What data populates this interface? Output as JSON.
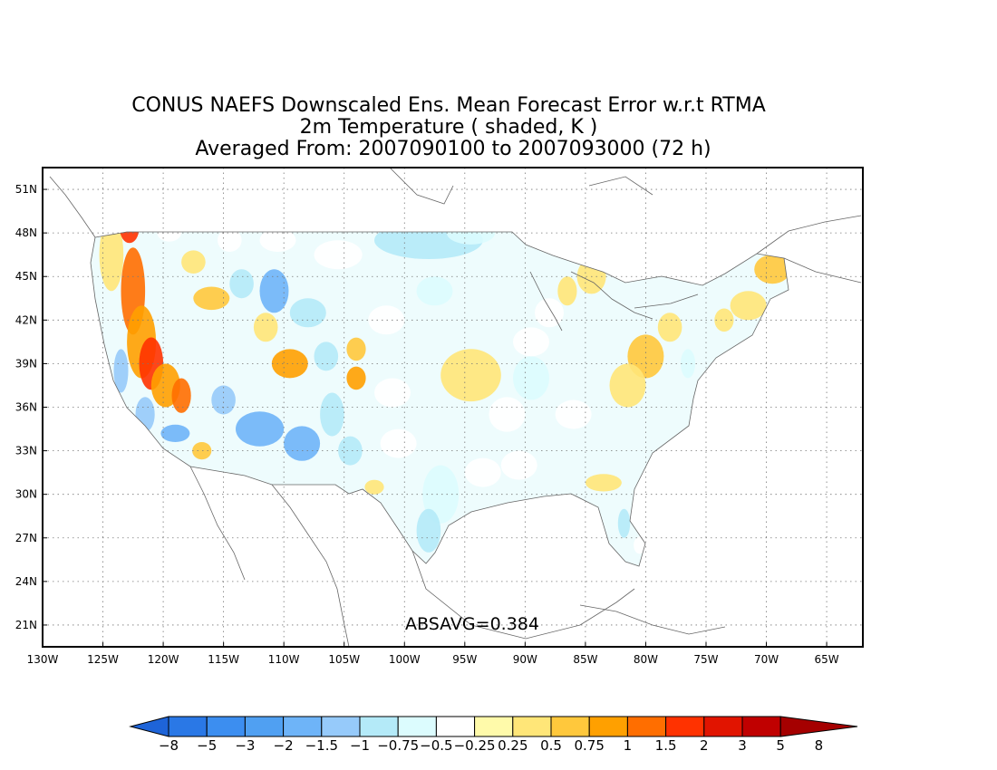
{
  "title": {
    "line1": "CONUS NAEFS Downscaled Ens. Mean Forecast Error w.r.t RTMA",
    "line2": "2m Temperature ( shaded, K )",
    "line3": "Averaged From: 2007090100 to 2007093000 (72 h)"
  },
  "stat_label": "ABSAVG=0.384",
  "map": {
    "lon_range": [
      -130,
      -62
    ],
    "lat_range": [
      19.5,
      52.5
    ],
    "lon_ticks": [
      {
        "value": -130,
        "label": "130W"
      },
      {
        "value": -125,
        "label": "125W"
      },
      {
        "value": -120,
        "label": "120W"
      },
      {
        "value": -115,
        "label": "115W"
      },
      {
        "value": -110,
        "label": "110W"
      },
      {
        "value": -105,
        "label": "105W"
      },
      {
        "value": -100,
        "label": "100W"
      },
      {
        "value": -95,
        "label": "95W"
      },
      {
        "value": -90,
        "label": "90W"
      },
      {
        "value": -85,
        "label": "85W"
      },
      {
        "value": -80,
        "label": "80W"
      },
      {
        "value": -75,
        "label": "75W"
      },
      {
        "value": -70,
        "label": "70W"
      },
      {
        "value": -65,
        "label": "65W"
      }
    ],
    "lat_ticks": [
      {
        "value": 21,
        "label": "21N"
      },
      {
        "value": 24,
        "label": "24N"
      },
      {
        "value": 27,
        "label": "27N"
      },
      {
        "value": 30,
        "label": "30N"
      },
      {
        "value": 33,
        "label": "33N"
      },
      {
        "value": 36,
        "label": "36N"
      },
      {
        "value": 39,
        "label": "39N"
      },
      {
        "value": 42,
        "label": "42N"
      },
      {
        "value": 45,
        "label": "45N"
      },
      {
        "value": 48,
        "label": "48N"
      },
      {
        "value": 51,
        "label": "51N"
      }
    ],
    "grid": true,
    "patches": [
      {
        "lon": -124.3,
        "lat": 46.5,
        "rx": 1.0,
        "ry": 2.5,
        "value": 0.5
      },
      {
        "lon": -122.8,
        "lat": 48.3,
        "rx": 0.8,
        "ry": 1.0,
        "value": 2
      },
      {
        "lon": -122.5,
        "lat": 44.0,
        "rx": 1.0,
        "ry": 3.0,
        "value": 1.5
      },
      {
        "lon": -121.8,
        "lat": 40.5,
        "rx": 1.2,
        "ry": 2.5,
        "value": 1
      },
      {
        "lon": -121.0,
        "lat": 39.0,
        "rx": 1.0,
        "ry": 1.8,
        "value": 2
      },
      {
        "lon": -119.8,
        "lat": 37.5,
        "rx": 1.2,
        "ry": 1.5,
        "value": 1
      },
      {
        "lon": -118.5,
        "lat": 36.8,
        "rx": 0.8,
        "ry": 1.2,
        "value": 1.5
      },
      {
        "lon": -123.5,
        "lat": 38.5,
        "rx": 0.6,
        "ry": 1.5,
        "value": -1
      },
      {
        "lon": -121.5,
        "lat": 35.5,
        "rx": 0.8,
        "ry": 1.2,
        "value": -1
      },
      {
        "lon": -119.0,
        "lat": 34.2,
        "rx": 1.2,
        "ry": 0.6,
        "value": -1.5
      },
      {
        "lon": -116.8,
        "lat": 33.0,
        "rx": 0.8,
        "ry": 0.6,
        "value": 0.75
      },
      {
        "lon": -117.5,
        "lat": 46.0,
        "rx": 1.0,
        "ry": 0.8,
        "value": 0.5
      },
      {
        "lon": -116.0,
        "lat": 43.5,
        "rx": 1.5,
        "ry": 0.8,
        "value": 0.75
      },
      {
        "lon": -113.5,
        "lat": 44.5,
        "rx": 1.0,
        "ry": 1.0,
        "value": -0.75
      },
      {
        "lon": -110.8,
        "lat": 44.0,
        "rx": 1.2,
        "ry": 1.5,
        "value": -1.5
      },
      {
        "lon": -108.0,
        "lat": 42.5,
        "rx": 1.5,
        "ry": 1.0,
        "value": -0.75
      },
      {
        "lon": -111.5,
        "lat": 41.5,
        "rx": 1.0,
        "ry": 1.0,
        "value": 0.5
      },
      {
        "lon": -109.5,
        "lat": 39.0,
        "rx": 1.5,
        "ry": 1.0,
        "value": 1
      },
      {
        "lon": -106.5,
        "lat": 39.5,
        "rx": 1.0,
        "ry": 1.0,
        "value": -0.75
      },
      {
        "lon": -104.0,
        "lat": 40.0,
        "rx": 0.8,
        "ry": 0.8,
        "value": 0.75
      },
      {
        "lon": -104.0,
        "lat": 38.0,
        "rx": 0.8,
        "ry": 0.8,
        "value": 1
      },
      {
        "lon": -112.0,
        "lat": 34.5,
        "rx": 2.0,
        "ry": 1.2,
        "value": -1.5
      },
      {
        "lon": -108.5,
        "lat": 33.5,
        "rx": 1.5,
        "ry": 1.2,
        "value": -1.5
      },
      {
        "lon": -106.0,
        "lat": 35.5,
        "rx": 1.0,
        "ry": 1.5,
        "value": -0.75
      },
      {
        "lon": -104.5,
        "lat": 33.0,
        "rx": 1.0,
        "ry": 1.0,
        "value": -0.75
      },
      {
        "lon": -115.0,
        "lat": 36.5,
        "rx": 1.0,
        "ry": 1.0,
        "value": -1
      },
      {
        "lon": -102.5,
        "lat": 30.5,
        "rx": 0.8,
        "ry": 0.5,
        "value": 0.5
      },
      {
        "lon": -103.0,
        "lat": 29.2,
        "rx": 0.4,
        "ry": 0.4,
        "value": 1
      },
      {
        "lon": -98.0,
        "lat": 47.5,
        "rx": 4.5,
        "ry": 1.3,
        "value": -0.75
      },
      {
        "lon": -94.5,
        "lat": 48.0,
        "rx": 2.0,
        "ry": 0.8,
        "value": -0.5
      },
      {
        "lon": -97.5,
        "lat": 44.0,
        "rx": 1.5,
        "ry": 1.0,
        "value": -0.5
      },
      {
        "lon": -94.5,
        "lat": 38.2,
        "rx": 2.5,
        "ry": 1.8,
        "value": 0.5
      },
      {
        "lon": -89.5,
        "lat": 38.0,
        "rx": 1.5,
        "ry": 1.5,
        "value": -0.5
      },
      {
        "lon": -97.0,
        "lat": 30.0,
        "rx": 1.5,
        "ry": 2.0,
        "value": -0.5
      },
      {
        "lon": -98.0,
        "lat": 27.5,
        "rx": 1.0,
        "ry": 1.5,
        "value": -0.75
      },
      {
        "lon": -93.5,
        "lat": 31.5,
        "rx": 1.5,
        "ry": 1.0,
        "value": -0.25
      },
      {
        "lon": -90.5,
        "lat": 32.0,
        "rx": 1.5,
        "ry": 1.0,
        "value": -0.25
      },
      {
        "lon": -84.5,
        "lat": 45.0,
        "rx": 1.2,
        "ry": 1.2,
        "value": 0.5
      },
      {
        "lon": -86.5,
        "lat": 44.0,
        "rx": 0.8,
        "ry": 1.0,
        "value": 0.5
      },
      {
        "lon": -80.0,
        "lat": 39.5,
        "rx": 1.5,
        "ry": 1.5,
        "value": 0.75
      },
      {
        "lon": -81.5,
        "lat": 37.5,
        "rx": 1.5,
        "ry": 1.5,
        "value": 0.5
      },
      {
        "lon": -78.0,
        "lat": 41.5,
        "rx": 1.0,
        "ry": 1.0,
        "value": 0.5
      },
      {
        "lon": -76.5,
        "lat": 39.0,
        "rx": 0.6,
        "ry": 1.0,
        "value": -0.5
      },
      {
        "lon": -75.5,
        "lat": 36.0,
        "rx": 0.5,
        "ry": 0.8,
        "value": 0.5
      },
      {
        "lon": -69.5,
        "lat": 45.5,
        "rx": 1.5,
        "ry": 1.0,
        "value": 0.75
      },
      {
        "lon": -71.5,
        "lat": 43.0,
        "rx": 1.5,
        "ry": 1.0,
        "value": 0.5
      },
      {
        "lon": -73.5,
        "lat": 42.0,
        "rx": 0.8,
        "ry": 0.8,
        "value": 0.5
      },
      {
        "lon": -83.5,
        "lat": 30.8,
        "rx": 1.5,
        "ry": 0.6,
        "value": 0.5
      },
      {
        "lon": -81.8,
        "lat": 28.0,
        "rx": 0.5,
        "ry": 1.0,
        "value": -0.75
      },
      {
        "lon": -80.5,
        "lat": 26.5,
        "rx": 0.5,
        "ry": 0.6,
        "value": 0.25
      },
      {
        "lon": -86.0,
        "lat": 35.5,
        "rx": 1.5,
        "ry": 1.0,
        "value": 0.25
      },
      {
        "lon": -91.5,
        "lat": 35.5,
        "rx": 1.5,
        "ry": 1.2,
        "value": 0.25
      },
      {
        "lon": -88.0,
        "lat": 42.5,
        "rx": 1.2,
        "ry": 1.0,
        "value": -0.25
      },
      {
        "lon": -89.5,
        "lat": 40.5,
        "rx": 1.5,
        "ry": 1.0,
        "value": -0.25
      },
      {
        "lon": -119.5,
        "lat": 48.0,
        "rx": 1.0,
        "ry": 0.6,
        "value": 0.25
      },
      {
        "lon": -114.5,
        "lat": 47.5,
        "rx": 1.0,
        "ry": 0.8,
        "value": 0.25
      },
      {
        "lon": -110.5,
        "lat": 47.5,
        "rx": 1.5,
        "ry": 0.8,
        "value": -0.25
      },
      {
        "lon": -105.5,
        "lat": 46.5,
        "rx": 2.0,
        "ry": 1.0,
        "value": -0.25
      },
      {
        "lon": -101.5,
        "lat": 42.0,
        "rx": 1.5,
        "ry": 1.0,
        "value": -0.25
      },
      {
        "lon": -101.0,
        "lat": 37.0,
        "rx": 1.5,
        "ry": 1.0,
        "value": -0.25
      },
      {
        "lon": -100.5,
        "lat": 33.5,
        "rx": 1.5,
        "ry": 1.0,
        "value": -0.25
      }
    ]
  },
  "colorbar": {
    "labels": [
      "−8",
      "−5",
      "−3",
      "−2",
      "−1.5",
      "−1",
      "−0.75",
      "−0.5",
      "−0.25",
      "0.25",
      "0.5",
      "0.75",
      "1",
      "1.5",
      "2",
      "3",
      "5",
      "8"
    ],
    "colors": [
      "#1e64d8",
      "#2a78e6",
      "#3c8ef0",
      "#50a0f2",
      "#6eb4f8",
      "#96cafa",
      "#b4eaf8",
      "#dcfcfe",
      "#ffffff",
      "#fffaaa",
      "#ffe678",
      "#ffc83c",
      "#ffa000",
      "#ff6e00",
      "#ff3200",
      "#e11400",
      "#c00000",
      "#a50000"
    ]
  }
}
